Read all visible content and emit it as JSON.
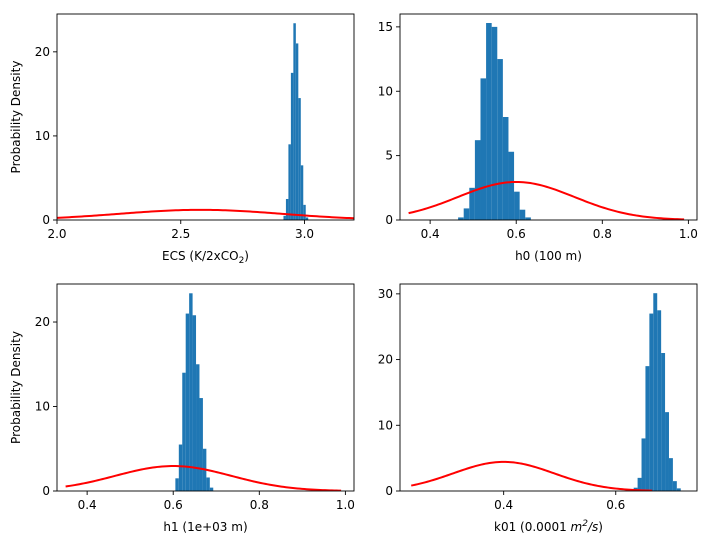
{
  "chart_data": [
    {
      "type": "bar",
      "subtype": "histogram",
      "xlabel": "ECS (K/2xCO",
      "xlabel_sub": "2",
      "xlabel_end": ")",
      "ylabel": "Probability Density",
      "xlim": [
        2.0,
        3.2
      ],
      "ylim": [
        0,
        24.5
      ],
      "xticks": [
        2.0,
        2.5,
        3.0
      ],
      "xtick_labels": [
        "2.0",
        "2.5",
        "3.0"
      ],
      "yticks": [
        0,
        10,
        20
      ],
      "ytick_labels": [
        "0",
        "10",
        "20"
      ],
      "hist": {
        "edges": [
          2.915,
          2.925,
          2.935,
          2.945,
          2.955,
          2.965,
          2.975,
          2.985,
          2.995,
          3.005,
          3.015
        ],
        "values": [
          0.5,
          2.5,
          9.0,
          17.5,
          23.4,
          21.0,
          14.5,
          6.5,
          1.8,
          0.3
        ]
      },
      "prior": {
        "dist": "normal",
        "mean": 2.58,
        "sd": 0.33,
        "xrange": [
          2.0,
          3.2
        ],
        "color": "#ff0000"
      }
    },
    {
      "type": "bar",
      "subtype": "histogram",
      "xlabel": "h0 (100 m)",
      "ylabel": "",
      "xlim": [
        0.33,
        1.02
      ],
      "ylim": [
        0,
        16.0
      ],
      "xticks": [
        0.4,
        0.6,
        0.8,
        1.0
      ],
      "xtick_labels": [
        "0.4",
        "0.6",
        "0.8",
        "1.0"
      ],
      "yticks": [
        0,
        5,
        10,
        15
      ],
      "ytick_labels": [
        "0",
        "5",
        "10",
        "15"
      ],
      "hist": {
        "edges": [
          0.465,
          0.478,
          0.491,
          0.504,
          0.517,
          0.53,
          0.543,
          0.556,
          0.569,
          0.582,
          0.595,
          0.608,
          0.621,
          0.634
        ],
        "values": [
          0.2,
          0.9,
          2.5,
          6.2,
          11.0,
          15.3,
          15.0,
          12.5,
          8.0,
          5.3,
          2.2,
          0.8,
          0.2
        ]
      },
      "prior": {
        "dist": "normal",
        "mean": 0.6,
        "sd": 0.135,
        "xrange": [
          0.35,
          0.99
        ],
        "color": "#ff0000"
      }
    },
    {
      "type": "bar",
      "subtype": "histogram",
      "xlabel": "h1 (1e+03 m)",
      "ylabel": "Probability Density",
      "xlim": [
        0.33,
        1.02
      ],
      "ylim": [
        0,
        24.5
      ],
      "xticks": [
        0.4,
        0.6,
        0.8,
        1.0
      ],
      "xtick_labels": [
        "0.4",
        "0.6",
        "0.8",
        "1.0"
      ],
      "yticks": [
        0,
        10,
        20
      ],
      "ytick_labels": [
        "0",
        "10",
        "20"
      ],
      "hist": {
        "edges": [
          0.605,
          0.613,
          0.621,
          0.629,
          0.637,
          0.645,
          0.653,
          0.661,
          0.669,
          0.677,
          0.685,
          0.693
        ],
        "values": [
          1.5,
          5.5,
          14.0,
          21.0,
          23.4,
          20.8,
          15.0,
          11.0,
          5.0,
          1.6,
          0.4
        ]
      },
      "prior": {
        "dist": "normal",
        "mean": 0.6,
        "sd": 0.135,
        "xrange": [
          0.35,
          0.99
        ],
        "color": "#ff0000"
      }
    },
    {
      "type": "bar",
      "subtype": "histogram",
      "xlabel": "k01 (0.0001 ",
      "xlabel_math": "m",
      "xlabel_sup": "2",
      "xlabel_math2": "/s",
      "xlabel_end": ")",
      "ylabel": "",
      "xlim": [
        0.215,
        0.745
      ],
      "ylim": [
        0,
        31.5
      ],
      "xticks": [
        0.4,
        0.6
      ],
      "xtick_labels": [
        "0.4",
        "0.6"
      ],
      "yticks": [
        0,
        10,
        20,
        30
      ],
      "ytick_labels": [
        "0",
        "10",
        "20",
        "30"
      ],
      "hist": {
        "edges": [
          0.632,
          0.639,
          0.646,
          0.653,
          0.66,
          0.667,
          0.674,
          0.681,
          0.688,
          0.695,
          0.702,
          0.709,
          0.716
        ],
        "values": [
          0.5,
          2.0,
          8.0,
          19.0,
          27.0,
          30.1,
          27.5,
          21.0,
          12.0,
          5.0,
          1.5,
          0.4
        ]
      },
      "prior": {
        "dist": "normal",
        "mean": 0.4,
        "sd": 0.09,
        "xrange": [
          0.235,
          0.665
        ],
        "color": "#ff0000"
      }
    }
  ]
}
